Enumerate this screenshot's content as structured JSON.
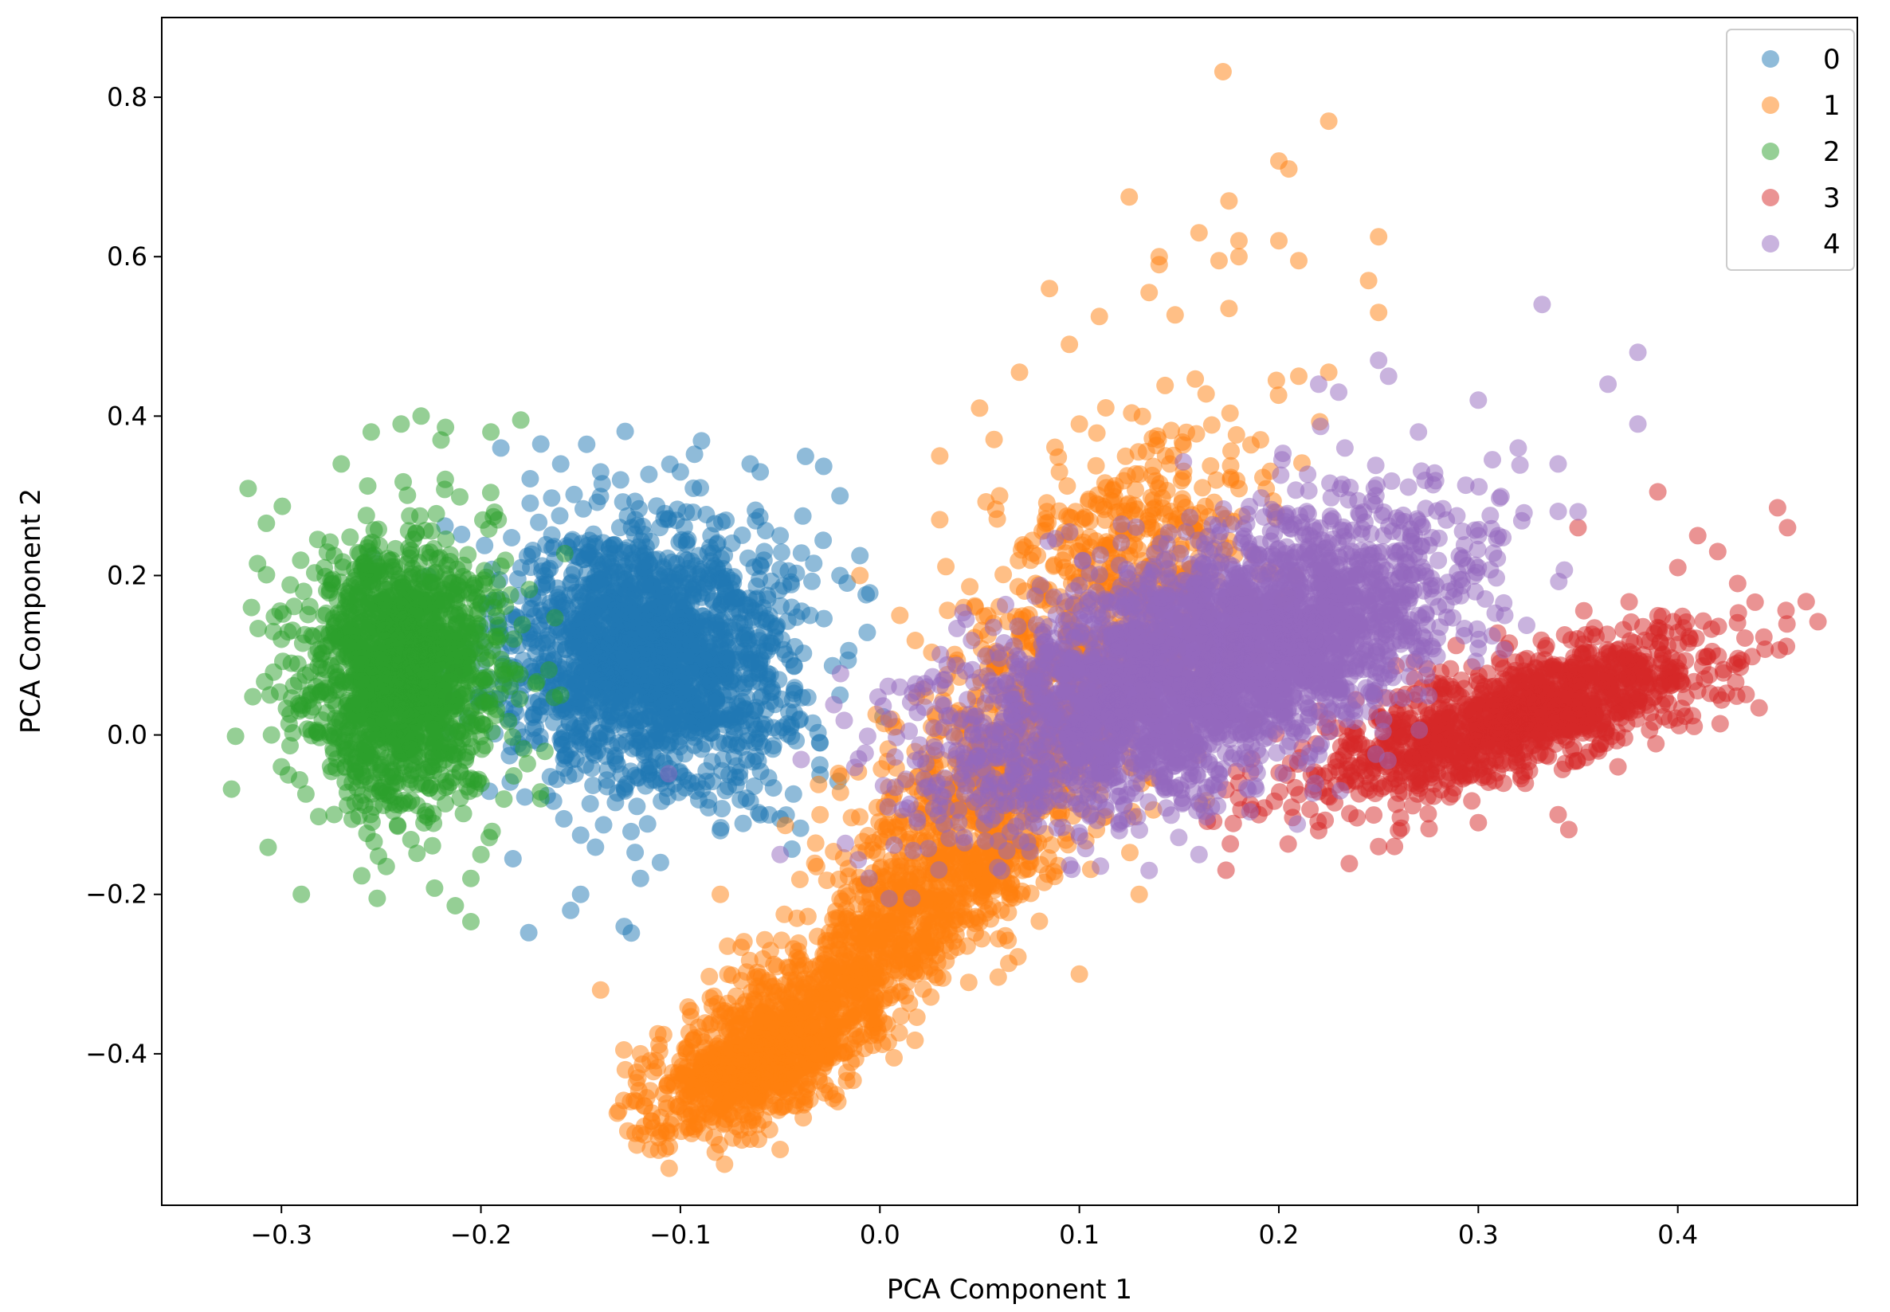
{
  "chart_data": {
    "type": "scatter",
    "title": "",
    "xlabel": "PCA Component 1",
    "ylabel": "PCA Component 2",
    "xlim": [
      -0.36,
      0.49
    ],
    "ylim": [
      -0.59,
      0.9
    ],
    "xticks": [
      {
        "value": -0.3,
        "label": "−0.3"
      },
      {
        "value": -0.2,
        "label": "−0.2"
      },
      {
        "value": -0.1,
        "label": "−0.1"
      },
      {
        "value": 0.0,
        "label": "0.0"
      },
      {
        "value": 0.1,
        "label": "0.1"
      },
      {
        "value": 0.2,
        "label": "0.2"
      },
      {
        "value": 0.3,
        "label": "0.3"
      },
      {
        "value": 0.4,
        "label": "0.4"
      }
    ],
    "yticks": [
      {
        "value": -0.4,
        "label": "−0.4"
      },
      {
        "value": -0.2,
        "label": "−0.2"
      },
      {
        "value": 0.0,
        "label": "0.0"
      },
      {
        "value": 0.2,
        "label": "0.2"
      },
      {
        "value": 0.4,
        "label": "0.4"
      },
      {
        "value": 0.6,
        "label": "0.6"
      },
      {
        "value": 0.8,
        "label": "0.8"
      }
    ],
    "grid": false,
    "legend_position": "top-right",
    "marker_alpha": 0.5,
    "series": [
      {
        "name": "0",
        "color": "#1f77b4",
        "points": [
          [
            -0.176,
            -0.248
          ],
          [
            -0.155,
            -0.22
          ],
          [
            -0.17,
            0.365
          ],
          [
            -0.1,
            0.33
          ],
          [
            -0.065,
            0.34
          ],
          [
            -0.06,
            0.33
          ],
          [
            -0.02,
            0.3
          ],
          [
            -0.01,
            0.225
          ],
          [
            -0.04,
            0.02
          ],
          [
            -0.06,
            -0.1
          ],
          [
            -0.03,
            -0.05
          ],
          [
            -0.14,
            0.33
          ],
          [
            -0.15,
            -0.2
          ],
          [
            -0.19,
            0.36
          ],
          [
            -0.12,
            -0.18
          ],
          [
            -0.05,
            0.25
          ],
          [
            -0.02,
            0.2
          ],
          [
            -0.02,
            0.05
          ],
          [
            -0.08,
            -0.12
          ],
          [
            -0.16,
            0.34
          ],
          [
            -0.035,
            0.15
          ],
          [
            -0.13,
            0.32
          ],
          [
            -0.09,
            0.31
          ],
          [
            -0.11,
            -0.16
          ],
          [
            -0.03,
            -0.01
          ]
        ],
        "clusters": [
          {
            "cx": -0.115,
            "cy": 0.1,
            "sx": 0.035,
            "sy": 0.085,
            "rho": 0.0,
            "n": 1800
          }
        ]
      },
      {
        "name": "1",
        "color": "#ff7f0e",
        "points": [
          [
            0.172,
            0.832
          ],
          [
            0.225,
            0.77
          ],
          [
            0.2,
            0.72
          ],
          [
            0.205,
            0.71
          ],
          [
            0.125,
            0.675
          ],
          [
            0.175,
            0.67
          ],
          [
            0.16,
            0.63
          ],
          [
            0.18,
            0.62
          ],
          [
            0.2,
            0.62
          ],
          [
            0.25,
            0.625
          ],
          [
            0.14,
            0.6
          ],
          [
            0.17,
            0.595
          ],
          [
            0.21,
            0.595
          ],
          [
            0.18,
            0.6
          ],
          [
            0.14,
            0.59
          ],
          [
            0.245,
            0.57
          ],
          [
            0.135,
            0.555
          ],
          [
            0.085,
            0.56
          ],
          [
            0.175,
            0.535
          ],
          [
            0.25,
            0.53
          ],
          [
            0.11,
            0.525
          ],
          [
            0.095,
            0.49
          ],
          [
            0.225,
            0.455
          ],
          [
            0.21,
            0.45
          ],
          [
            0.07,
            0.455
          ],
          [
            0.03,
            0.35
          ],
          [
            -0.05,
            -0.52
          ],
          [
            -0.115,
            -0.52
          ],
          [
            -0.12,
            -0.5
          ],
          [
            -0.12,
            -0.4
          ],
          [
            -0.085,
            -0.33
          ],
          [
            -0.08,
            -0.2
          ],
          [
            -0.03,
            -0.1
          ],
          [
            -0.01,
            0.2
          ],
          [
            0.01,
            0.15
          ],
          [
            0.03,
            0.27
          ],
          [
            0.05,
            0.41
          ],
          [
            0.1,
            0.39
          ],
          [
            0.06,
            0.3
          ],
          [
            0.09,
            0.33
          ],
          [
            0.13,
            -0.2
          ],
          [
            0.1,
            -0.3
          ],
          [
            -0.14,
            -0.32
          ],
          [
            -0.125,
            -0.46
          ]
        ],
        "clusters": [
          {
            "cx": -0.06,
            "cy": -0.41,
            "sx": 0.028,
            "sy": 0.045,
            "rho": 0.6,
            "n": 800
          },
          {
            "cx": 0.01,
            "cy": -0.24,
            "sx": 0.045,
            "sy": 0.09,
            "rho": 0.82,
            "n": 900
          },
          {
            "cx": 0.08,
            "cy": 0.02,
            "sx": 0.05,
            "sy": 0.12,
            "rho": 0.78,
            "n": 800
          },
          {
            "cx": 0.12,
            "cy": 0.25,
            "sx": 0.035,
            "sy": 0.08,
            "rho": 0.55,
            "n": 300
          }
        ]
      },
      {
        "name": "2",
        "color": "#2ca02c",
        "points": [
          [
            -0.325,
            -0.068
          ],
          [
            -0.312,
            0.215
          ],
          [
            -0.29,
            -0.2
          ],
          [
            -0.252,
            -0.205
          ],
          [
            -0.205,
            -0.18
          ],
          [
            -0.24,
            0.39
          ],
          [
            -0.255,
            0.38
          ],
          [
            -0.23,
            0.4
          ],
          [
            -0.22,
            0.37
          ],
          [
            -0.195,
            0.38
          ],
          [
            -0.18,
            0.395
          ],
          [
            -0.3,
            0.12
          ],
          [
            -0.305,
            0.0
          ],
          [
            -0.3,
            -0.04
          ],
          [
            -0.27,
            0.34
          ],
          [
            -0.16,
            0.05
          ],
          [
            -0.17,
            -0.08
          ],
          [
            -0.2,
            -0.15
          ]
        ],
        "clusters": [
          {
            "cx": -0.24,
            "cy": 0.08,
            "sx": 0.025,
            "sy": 0.085,
            "rho": 0.0,
            "n": 1500
          }
        ]
      },
      {
        "name": "3",
        "color": "#d62728",
        "points": [
          [
            0.455,
            0.26
          ],
          [
            0.45,
            0.285
          ],
          [
            0.39,
            0.305
          ],
          [
            0.41,
            0.25
          ],
          [
            0.42,
            0.23
          ],
          [
            0.43,
            0.19
          ],
          [
            0.43,
            0.09
          ],
          [
            0.42,
            0.05
          ],
          [
            0.37,
            -0.04
          ],
          [
            0.34,
            -0.1
          ],
          [
            0.3,
            -0.11
          ],
          [
            0.26,
            -0.12
          ],
          [
            0.25,
            -0.14
          ],
          [
            0.22,
            -0.12
          ],
          [
            0.19,
            -0.1
          ],
          [
            0.18,
            -0.06
          ],
          [
            0.35,
            0.26
          ],
          [
            0.4,
            0.21
          ]
        ],
        "clusters": [
          {
            "cx": 0.315,
            "cy": 0.02,
            "sx": 0.05,
            "sy": 0.05,
            "rho": 0.7,
            "n": 1200
          }
        ]
      },
      {
        "name": "4",
        "color": "#9467bd",
        "points": [
          [
            0.332,
            0.54
          ],
          [
            0.38,
            0.48
          ],
          [
            0.365,
            0.44
          ],
          [
            0.38,
            0.39
          ],
          [
            0.25,
            0.47
          ],
          [
            0.255,
            0.45
          ],
          [
            0.22,
            0.44
          ],
          [
            0.3,
            0.42
          ],
          [
            0.32,
            0.36
          ],
          [
            0.34,
            0.34
          ],
          [
            0.31,
            0.25
          ],
          [
            0.3,
            0.21
          ],
          [
            0.35,
            0.28
          ],
          [
            0.135,
            -0.17
          ],
          [
            0.16,
            -0.15
          ],
          [
            0.12,
            -0.12
          ],
          [
            0.01,
            0.06
          ],
          [
            -0.05,
            -0.15
          ],
          [
            0.23,
            0.43
          ],
          [
            0.27,
            0.38
          ]
        ],
        "clusters": [
          {
            "cx": 0.15,
            "cy": 0.07,
            "sx": 0.06,
            "sy": 0.085,
            "rho": 0.55,
            "n": 2600
          },
          {
            "cx": 0.22,
            "cy": 0.18,
            "sx": 0.04,
            "sy": 0.07,
            "rho": 0.3,
            "n": 500
          }
        ]
      }
    ]
  }
}
